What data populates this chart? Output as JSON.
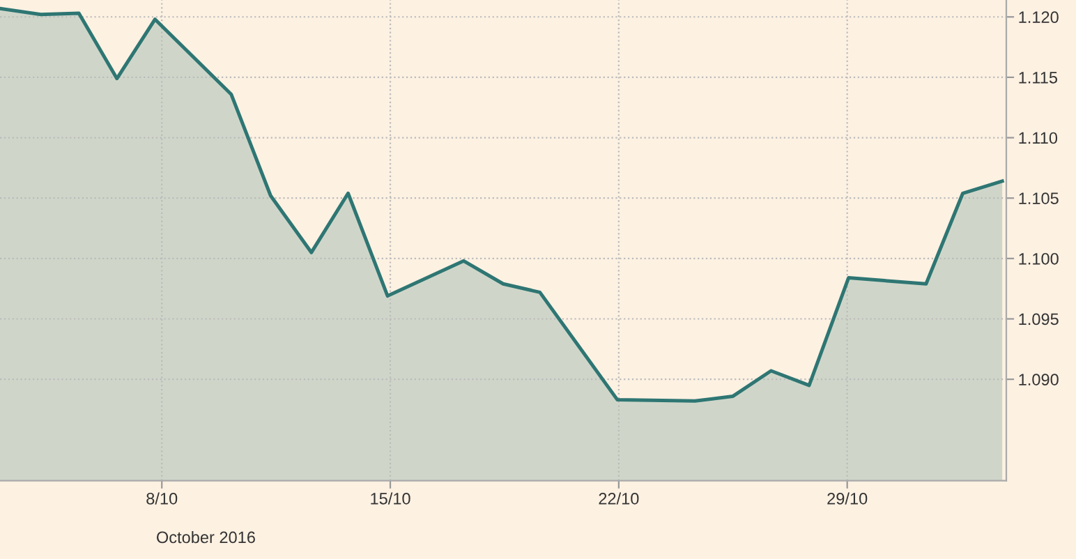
{
  "chart_data": {
    "type": "area",
    "annotations": [
      "October 2016"
    ],
    "x": [
      "2016-10-03T01:00",
      "2016-10-04T07:00",
      "2016-10-05T11:00",
      "2016-10-06T15:00",
      "2016-10-07T19:00",
      "2016-10-10T03:00",
      "2016-10-11T08:00",
      "2016-10-12T14:00",
      "2016-10-13T17:00",
      "2016-10-14T22:00",
      "2016-10-17T06:00",
      "2016-10-18T11:00",
      "2016-10-19T14:00",
      "2016-10-21T23:00",
      "2016-10-24T08:00",
      "2016-10-25T12:00",
      "2016-10-26T16:00",
      "2016-10-27T20:00",
      "2016-10-29T01:00",
      "2016-10-31T10:00",
      "2016-11-01T13:00",
      "2016-11-02T18:00"
    ],
    "series": [
      {
        "color": "#2e7673",
        "values": [
          1.1207,
          1.1202,
          1.1203,
          1.1149,
          1.1198,
          1.1136,
          1.1052,
          1.1005,
          1.1054,
          1.0969,
          1.0998,
          1.0979,
          1.0972,
          1.0883,
          1.0882,
          1.0886,
          1.0907,
          1.0895,
          1.0984,
          1.0979,
          1.1054,
          1.1064
        ]
      }
    ],
    "xlim": [
      "2016-10-03T01:00",
      "2016-11-02T21:00"
    ],
    "ylim": [
      1.0816,
      1.1214
    ],
    "xticks": [
      {
        "value": "2016-10-08",
        "label": "8/10"
      },
      {
        "value": "2016-10-15",
        "label": "15/10"
      },
      {
        "value": "2016-10-22",
        "label": "22/10"
      },
      {
        "value": "2016-10-29",
        "label": "29/10"
      }
    ],
    "yticks": [
      {
        "value": 1.09,
        "label": "1.090"
      },
      {
        "value": 1.095,
        "label": "1.095"
      },
      {
        "value": 1.1,
        "label": "1.100"
      },
      {
        "value": 1.105,
        "label": "1.105"
      },
      {
        "value": 1.11,
        "label": "1.110"
      },
      {
        "value": 1.115,
        "label": "1.115"
      },
      {
        "value": 1.12,
        "label": "1.120"
      }
    ],
    "grid": true,
    "line_style": "solid",
    "marker": "none"
  }
}
